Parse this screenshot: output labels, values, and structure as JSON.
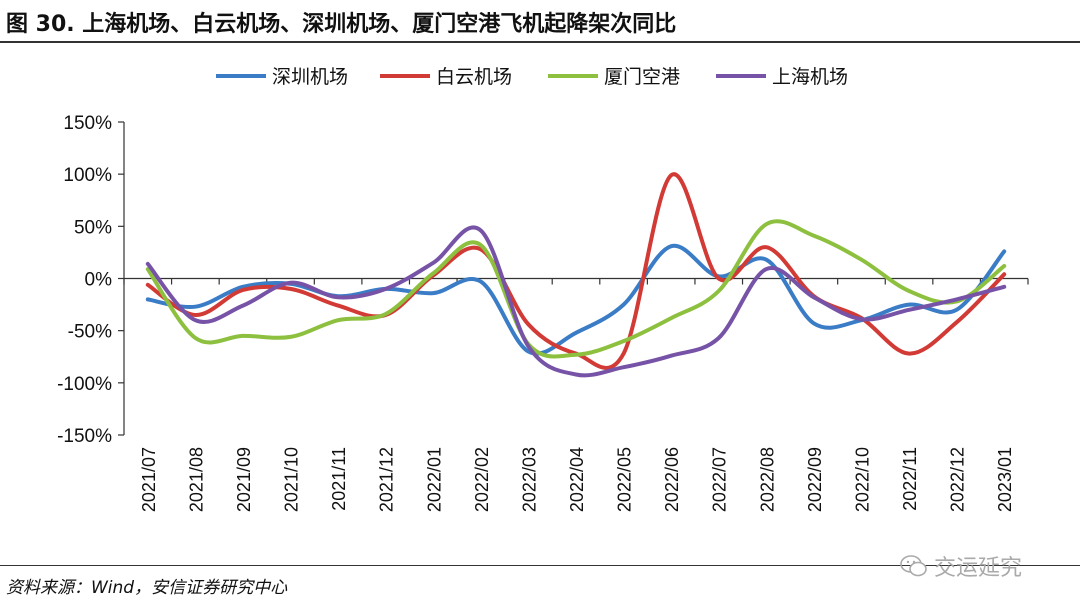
{
  "header": {
    "title": "图 30. 上海机场、白云机场、深圳机场、厦门空港飞机起降架次同比"
  },
  "footer": {
    "source": "资料来源：Wind，安信证券研究中心",
    "watermark": "交运延究"
  },
  "chart_data": {
    "type": "line",
    "title": "图 30. 上海机场、白云机场、深圳机场、厦门空港飞机起降架次同比",
    "xlabel": "",
    "ylabel": "",
    "ylim": [
      -150,
      150
    ],
    "yticks": [
      150,
      100,
      50,
      0,
      -50,
      -100,
      -150
    ],
    "ytick_labels": [
      "150%",
      "100%",
      "50%",
      "0%",
      "-50%",
      "-100%",
      "-150%"
    ],
    "categories": [
      "2021/07",
      "2021/08",
      "2021/09",
      "2021/10",
      "2021/11",
      "2021/12",
      "2022/01",
      "2022/02",
      "2022/03",
      "2022/04",
      "2022/05",
      "2022/06",
      "2022/07",
      "2022/08",
      "2022/09",
      "2022/10",
      "2022/11",
      "2022/12",
      "2023/01"
    ],
    "legend_position": "top-center",
    "series": [
      {
        "name": "深圳机场",
        "color": "#3A7CC5",
        "values": [
          -20,
          -27,
          -8,
          -5,
          -17,
          -10,
          -14,
          -3,
          -70,
          -52,
          -25,
          31,
          2,
          18,
          -43,
          -40,
          -25,
          -30,
          26
        ]
      },
      {
        "name": "白云机场",
        "color": "#D23A35",
        "values": [
          -6,
          -35,
          -11,
          -10,
          -26,
          -35,
          3,
          28,
          -44,
          -72,
          -72,
          99,
          0,
          30,
          -17,
          -38,
          -72,
          -42,
          4
        ]
      },
      {
        "name": "厦门空港",
        "color": "#8DC03F",
        "values": [
          9,
          -57,
          -55,
          -56,
          -40,
          -34,
          5,
          32,
          -63,
          -73,
          -60,
          -38,
          -12,
          52,
          41,
          18,
          -12,
          -22,
          12
        ]
      },
      {
        "name": "上海机场",
        "color": "#7653A6",
        "values": [
          14,
          -40,
          -26,
          -4,
          -18,
          -10,
          15,
          46,
          -65,
          -92,
          -85,
          -74,
          -57,
          9,
          -18,
          -39,
          -30,
          -20,
          -8
        ]
      }
    ]
  }
}
